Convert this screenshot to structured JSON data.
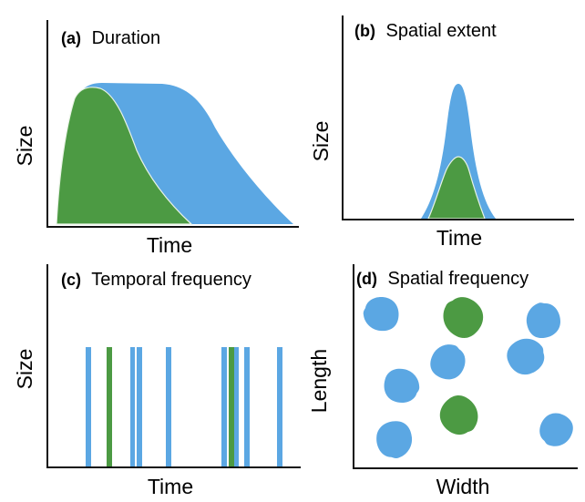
{
  "colors": {
    "blue": "#5ba7e3",
    "green": "#4c9a43",
    "axis": "#111111"
  },
  "panels": [
    {
      "letter": "(a)",
      "title": "Duration",
      "xlabel": "Time",
      "ylabel": "Size"
    },
    {
      "letter": "(b)",
      "title": "Spatial extent",
      "xlabel": "Time",
      "ylabel": "Size"
    },
    {
      "letter": "(c)",
      "title": "Temporal frequency",
      "xlabel": "Time",
      "ylabel": "Size"
    },
    {
      "letter": "(d)",
      "title": "Spatial frequency",
      "xlabel": "Width",
      "ylabel": "Length"
    }
  ],
  "temporal_bars": [
    "blue",
    "green",
    "blue",
    "blue",
    "blue",
    "blue",
    "green",
    "blue",
    "blue",
    "blue",
    "blue"
  ],
  "spatial_patches": [
    "blue",
    "green",
    "blue",
    "blue",
    "blue",
    "blue",
    "green",
    "blue",
    "blue"
  ]
}
